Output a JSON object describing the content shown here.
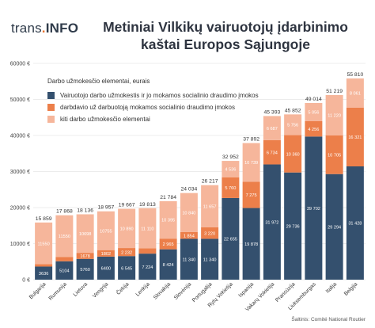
{
  "logo": {
    "pre": "trans",
    "dot": ".",
    "post": "INFO"
  },
  "title_line1": "Metiniai Vilkikų vairuotojų įdarbinimo",
  "title_line2": "kaštai Europos Sąjungoje",
  "legend": {
    "heading": "Darbo užmokesčio elementai, eurais",
    "items": [
      {
        "label": "Vairuotojo darbo užmokestis ir jo mokamos socialinio draudimo įmokos",
        "color": "#34506e"
      },
      {
        "label": "darbdavio už darbuotoją mokamos socialinio draudimo įmokos",
        "color": "#ec7f4a"
      },
      {
        "label": "kiti darbo užmokesčio elementai",
        "color": "#f6b69b"
      }
    ]
  },
  "source": "Šaltinis: Comité National Routier",
  "chart_data": {
    "type": "bar",
    "stacked": true,
    "ylim": [
      0,
      60000
    ],
    "y_ticks": [
      "0 €",
      "10000 €",
      "20000 €",
      "30000 €",
      "40000 €",
      "50000 €",
      "60000 €"
    ],
    "y_tick_values": [
      0,
      10000,
      20000,
      30000,
      40000,
      50000,
      60000
    ],
    "grid": true,
    "categories": [
      "Bulgarija",
      "Rumunija",
      "Lietuva",
      "Vengrija",
      "Čekija",
      "Lenkija",
      "Slovakija",
      "Slovėnija",
      "Portugalija",
      "Rytų Vokietija",
      "Ispanija",
      "Vakarų Vokietija",
      "Prancūzija",
      "Liuksemburgas",
      "Italija",
      "Belgija"
    ],
    "totals": [
      "15 859",
      "17 868",
      "18 136",
      "18 957",
      "19 667",
      "19 813",
      "21 784",
      "24 034",
      "26 217",
      "32 952",
      "37 892",
      "45 393",
      "45 852",
      "49 014",
      "51 219",
      "55 810"
    ],
    "total_values": [
      15859,
      17868,
      18136,
      18957,
      19667,
      19813,
      21784,
      24034,
      26217,
      32952,
      37892,
      45393,
      45852,
      49014,
      51219,
      55810
    ],
    "series": [
      {
        "name": "Vairuotojo darbo užmokestis ir jo mokamos socialinio draudimo įmokos",
        "values": [
          3636,
          5104,
          5760,
          6400,
          6545,
          7224,
          8424,
          11340,
          11340,
          22655,
          19878,
          31972,
          29736,
          39702,
          29294,
          31428
        ],
        "labels": [
          "3636",
          "5104",
          "5760",
          "6400",
          "6 545",
          "7 224",
          "8 424",
          "11 340",
          "11 340",
          "22 655",
          "19 878",
          "31 972",
          "29 736",
          "39 702",
          "29 294",
          "31 428"
        ]
      },
      {
        "name": "darbdavio už darbuotoją mokamos socialinio draudimo įmokos",
        "values": [
          673,
          1214,
          1678,
          1802,
          2232,
          1493,
          2965,
          1854,
          3220,
          5760,
          7275,
          6734,
          10360,
          4256,
          10705,
          16321
        ],
        "labels": [
          "673",
          "1214",
          "1678",
          "1802",
          "2 232",
          "1 493",
          "2 965",
          "1 854",
          "3 220",
          "5 760",
          "7 275",
          "6 734",
          "10 360",
          "4 256",
          "10 705",
          "16 321"
        ]
      },
      {
        "name": "kiti darbo užmokesčio elementai",
        "values": [
          11550,
          11550,
          10698,
          10755,
          10890,
          11110,
          10395,
          10840,
          11657,
          4536,
          10739,
          6687,
          5756,
          5056,
          11220,
          8061
        ],
        "labels": [
          "11550",
          "11550",
          "10698",
          "10755",
          "10 890",
          "11 110",
          "10 395",
          "10 840",
          "11 657",
          "4 536",
          "10 739",
          "6 687",
          "5 756",
          "5 056",
          "11 220",
          "8 061"
        ]
      }
    ]
  }
}
